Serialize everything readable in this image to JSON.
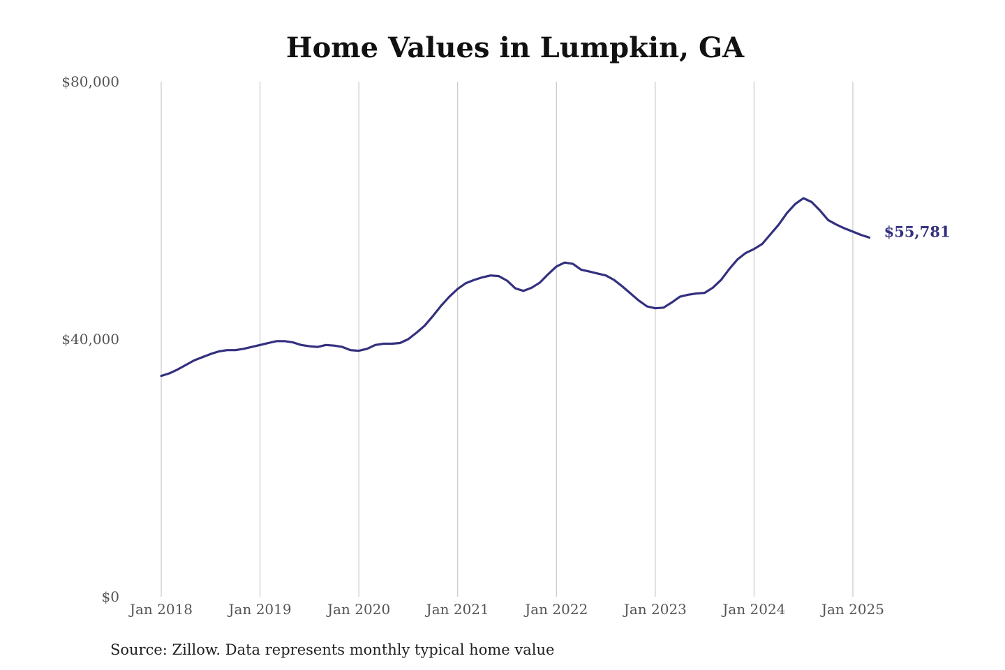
{
  "source_note": "Source: Zillow. Data represents monthly typical home value",
  "colors": {
    "line": "#33307f",
    "grid": "#c8c8c8",
    "tick": "#555555"
  },
  "chart_data": {
    "type": "line",
    "title": "Home Values in Lumpkin, GA",
    "xlabel": "",
    "ylabel": "",
    "ylim": [
      0,
      80000
    ],
    "yticks": [
      0,
      40000,
      80000
    ],
    "ytick_labels": [
      "$0",
      "$40,000",
      "$80,000"
    ],
    "xticks": [
      "2018-01",
      "2019-01",
      "2020-01",
      "2021-01",
      "2022-01",
      "2023-01",
      "2024-01",
      "2025-01"
    ],
    "xtick_labels": [
      "Jan 2018",
      "Jan 2019",
      "Jan 2020",
      "Jan 2021",
      "Jan 2022",
      "Jan 2023",
      "Jan 2024",
      "Jan 2025"
    ],
    "grid": "vertical",
    "end_label": "$55,781",
    "series": [
      {
        "x": [
          "2018-01",
          "2018-02",
          "2018-03",
          "2018-04",
          "2018-05",
          "2018-06",
          "2018-07",
          "2018-08",
          "2018-09",
          "2018-10",
          "2018-11",
          "2018-12",
          "2019-01",
          "2019-02",
          "2019-03",
          "2019-04",
          "2019-05",
          "2019-06",
          "2019-07",
          "2019-08",
          "2019-09",
          "2019-10",
          "2019-11",
          "2019-12",
          "2020-01",
          "2020-02",
          "2020-03",
          "2020-04",
          "2020-05",
          "2020-06",
          "2020-07",
          "2020-08",
          "2020-09",
          "2020-10",
          "2020-11",
          "2020-12",
          "2021-01",
          "2021-02",
          "2021-03",
          "2021-04",
          "2021-05",
          "2021-06",
          "2021-07",
          "2021-08",
          "2021-09",
          "2021-10",
          "2021-11",
          "2021-12",
          "2022-01",
          "2022-02",
          "2022-03",
          "2022-04",
          "2022-05",
          "2022-06",
          "2022-07",
          "2022-08",
          "2022-09",
          "2022-10",
          "2022-11",
          "2022-12",
          "2023-01",
          "2023-02",
          "2023-03",
          "2023-04",
          "2023-05",
          "2023-06",
          "2023-07",
          "2023-08",
          "2023-09",
          "2023-10",
          "2023-11",
          "2023-12",
          "2024-01",
          "2024-02",
          "2024-03",
          "2024-04",
          "2024-05",
          "2024-06",
          "2024-07",
          "2024-08",
          "2024-09",
          "2024-10",
          "2024-11",
          "2024-12",
          "2025-01",
          "2025-02",
          "2025-03"
        ],
        "values": [
          34300,
          34700,
          35300,
          36000,
          36700,
          37200,
          37700,
          38100,
          38300,
          38300,
          38500,
          38800,
          39100,
          39400,
          39700,
          39700,
          39500,
          39100,
          38900,
          38800,
          39100,
          39000,
          38800,
          38300,
          38200,
          38500,
          39100,
          39300,
          39300,
          39400,
          40000,
          41000,
          42100,
          43600,
          45200,
          46600,
          47800,
          48700,
          49200,
          49600,
          49900,
          49800,
          49100,
          47900,
          47500,
          48000,
          48800,
          50100,
          51300,
          51900,
          51700,
          50800,
          50500,
          50200,
          49900,
          49200,
          48200,
          47100,
          46000,
          45100,
          44800,
          44900,
          45700,
          46600,
          46900,
          47100,
          47200,
          48000,
          49200,
          50900,
          52400,
          53400,
          54000,
          54800,
          56300,
          57800,
          59600,
          61000,
          61900,
          61300,
          60000,
          58500,
          57800,
          57200,
          56700,
          56200,
          55781
        ]
      }
    ]
  }
}
